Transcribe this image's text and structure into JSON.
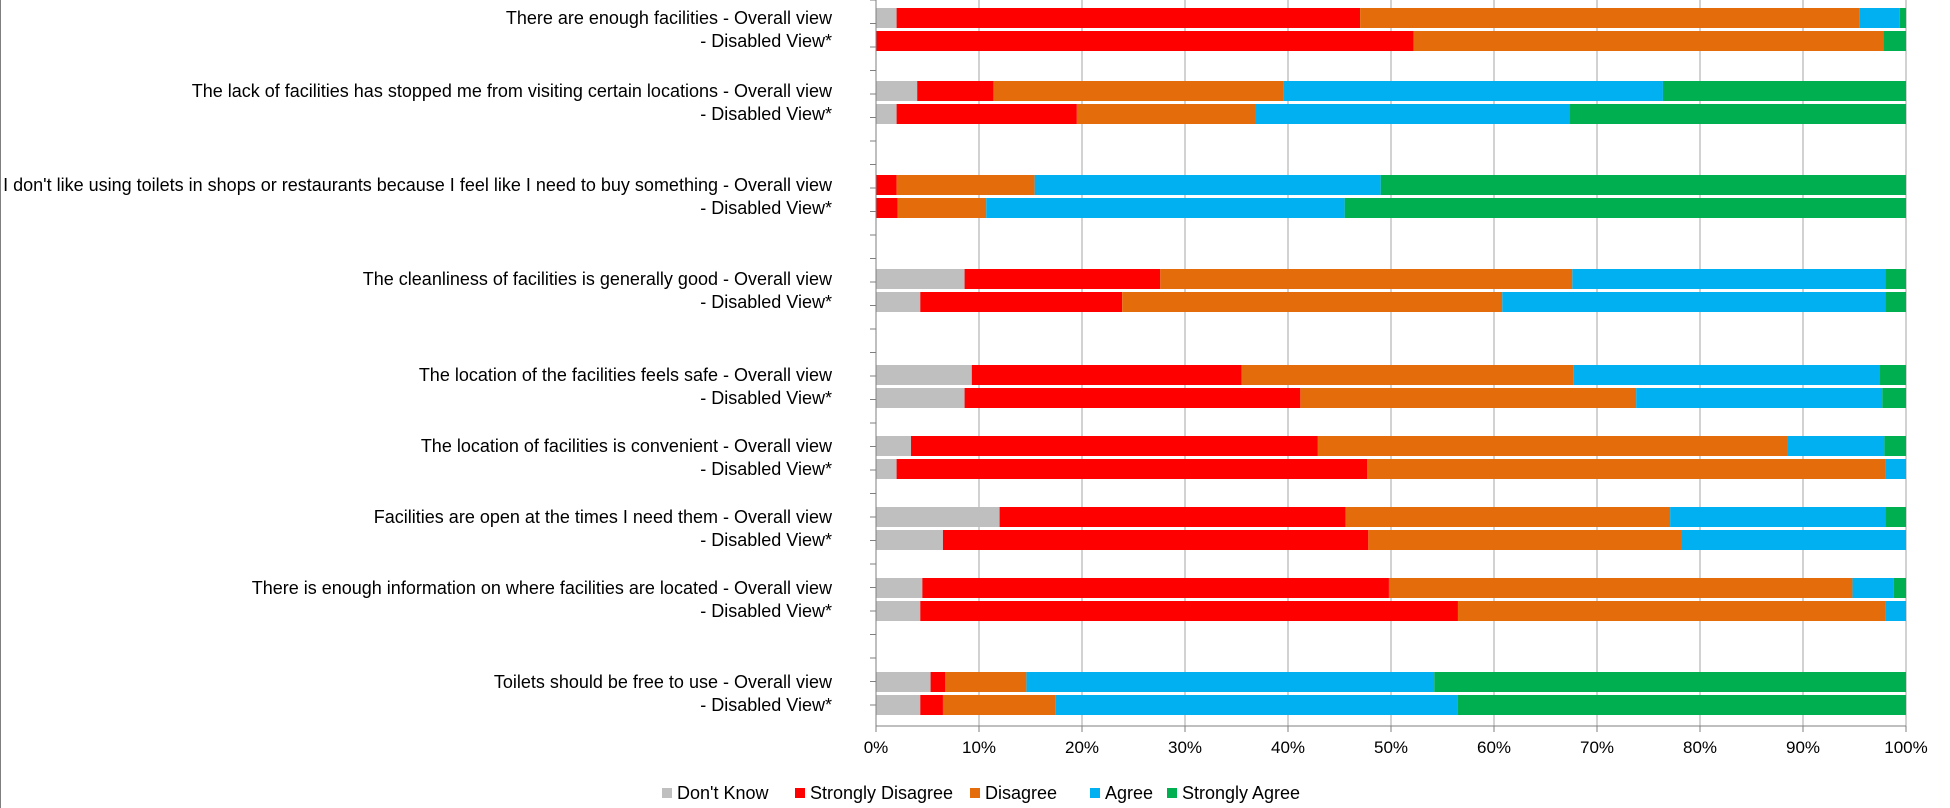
{
  "chart_data": {
    "type": "bar",
    "stacked": true,
    "orientation": "horizontal",
    "percent_stacked": true,
    "categories": [
      "There are enough facilities - Overall view",
      "- Disabled View*",
      "The lack of facilities has stopped me from visiting certain locations - Overall view",
      "- Disabled View*",
      "I don't like using toilets in shops or restaurants because I feel like I need to buy something - Overall view",
      "- Disabled View*",
      "The cleanliness of facilities is generally good - Overall view",
      "- Disabled View*",
      "The location of the facilities feels safe - Overall view",
      "- Disabled View*",
      "The location of facilities is convenient - Overall view",
      "- Disabled View*",
      "Facilities are open at the times I need them - Overall view",
      "- Disabled View*",
      "There is enough information on where facilities are located - Overall view",
      "- Disabled View*",
      "Toilets should be free to use - Overall view",
      "- Disabled View*"
    ],
    "series": [
      {
        "name": "Don't Know",
        "color": "#bfbfbf",
        "values": [
          2,
          0,
          4,
          2,
          0,
          0,
          8.6,
          4.3,
          9.3,
          8.6,
          3.4,
          2,
          12,
          6.5,
          4.5,
          4.3,
          5.3,
          4.3
        ]
      },
      {
        "name": "Strongly Disagree",
        "color": "#ff0000",
        "values": [
          45,
          52.2,
          7.4,
          17.5,
          2,
          2.1,
          19,
          19.6,
          26.2,
          32.6,
          39.5,
          45.7,
          33.6,
          41.3,
          45.3,
          52.2,
          1.4,
          2.2
        ]
      },
      {
        "name": "Disagree",
        "color": "#e46c0a",
        "values": [
          48.5,
          45.6,
          28.2,
          17.3,
          13.4,
          8.6,
          40,
          36.9,
          32.2,
          32.6,
          45.6,
          50.3,
          31.5,
          30.4,
          45,
          41.5,
          7.9,
          10.9
        ]
      },
      {
        "name": "Agree",
        "color": "#00b0f0",
        "values": [
          3.9,
          0,
          36.8,
          30.5,
          33.6,
          34.8,
          30.4,
          37.2,
          29.7,
          23.9,
          9.4,
          2,
          20.9,
          21.8,
          4,
          2,
          39.6,
          39.1
        ]
      },
      {
        "name": "Strongly Agree",
        "color": "#00b050",
        "values": [
          0.6,
          2.2,
          23.6,
          32.7,
          51,
          54.5,
          2,
          2,
          2.6,
          2.3,
          2.1,
          0,
          2,
          0,
          1.2,
          0,
          45.8,
          43.5
        ]
      }
    ],
    "x_ticks": [
      "0%",
      "10%",
      "20%",
      "30%",
      "40%",
      "50%",
      "60%",
      "70%",
      "80%",
      "90%",
      "100%"
    ],
    "xlim": [
      0,
      100
    ],
    "grid": true,
    "legend_position": "bottom",
    "title": "",
    "xlabel": "",
    "ylabel": ""
  }
}
